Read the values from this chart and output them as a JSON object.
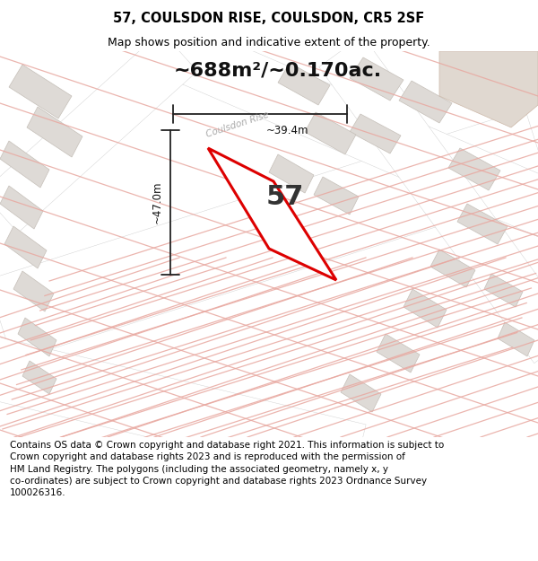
{
  "title": "57, COULSDON RISE, COULSDON, CR5 2SF",
  "subtitle": "Map shows position and indicative extent of the property.",
  "area_text": "~688m²/~0.170ac.",
  "number_label": "57",
  "dim_width": "~39.4m",
  "dim_height": "~47.0m",
  "street_label": "Coulsdon Rise",
  "footer_text": "Contains OS data © Crown copyright and database right 2021. This information is subject to\nCrown copyright and database rights 2023 and is reproduced with the permission of\nHM Land Registry. The polygons (including the associated geometry, namely x, y\nco-ordinates) are subject to Crown copyright and database rights 2023 Ordnance Survey\n100026316.",
  "bg_color": "#eeeceb",
  "road_fill": "#ffffff",
  "building_fill": "#dedad6",
  "plot_fill": "#ffffff",
  "plot_edge": "#dd0000",
  "dim_line_color": "#222222",
  "title_color": "#000000",
  "footer_color": "#000000",
  "street_color": "#aaaaaa",
  "corner_fill": "#e0d8d0",
  "title_fontsize": 10.5,
  "subtitle_fontsize": 9,
  "area_fontsize": 16,
  "number_fontsize": 22,
  "footer_fontsize": 7.5
}
